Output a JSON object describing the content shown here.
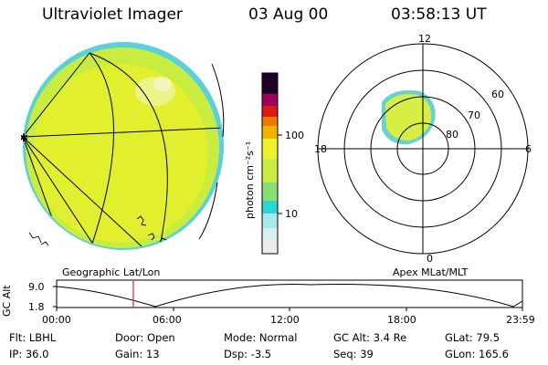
{
  "header": {
    "instrument": "Ultraviolet Imager",
    "date": "03 Aug 00",
    "time": "03:58:13 UT"
  },
  "colorbar": {
    "unit_label": "photon cm⁻²s⁻¹",
    "tick_100": "100",
    "tick_10": "10",
    "colors": [
      "#e8e8e8",
      "#c8f0f0",
      "#2cd6d6",
      "#a8e868",
      "#f0f02c",
      "#f0b400",
      "#f07800",
      "#e01818",
      "#a0005a",
      "#200028"
    ]
  },
  "map_labels": {
    "left": "Geographic Lat/Lon",
    "right": "Apex MLat/MLT"
  },
  "polar": {
    "mlt_12": "12",
    "mlt_18": "18",
    "mlt_6": "6",
    "mlt_0": "0",
    "lat_60": "60",
    "lat_70": "70",
    "lat_80": "80"
  },
  "alt_plot": {
    "ylabel": "GC Alt",
    "y_max": "9.0",
    "y_min": "1.8",
    "x_ticks": [
      "00:00",
      "06:00",
      "12:00",
      "18:00",
      "23:59"
    ],
    "marker_color": "#e02020"
  },
  "info": {
    "filter": "Flt: LBHL",
    "ip": "IP: 36.0",
    "door": "Door: Open",
    "gain": "Gain: 13",
    "mode": "Mode: Normal",
    "dsp": "Dsp:    -3.5",
    "gc_alt": "GC Alt: 3.4 Re",
    "seq": "Seq: 39",
    "glat": "GLat:  79.5",
    "glon": "GLon: 165.6"
  }
}
